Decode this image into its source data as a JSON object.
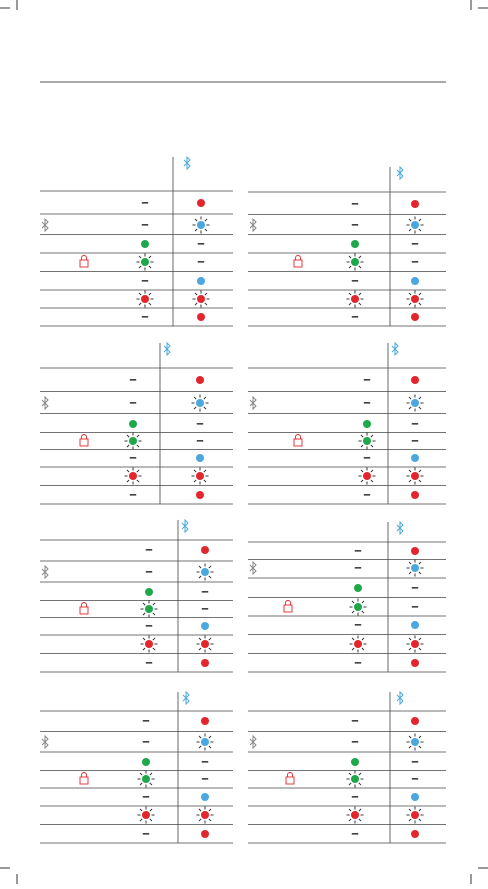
{
  "dash": "–"
}
